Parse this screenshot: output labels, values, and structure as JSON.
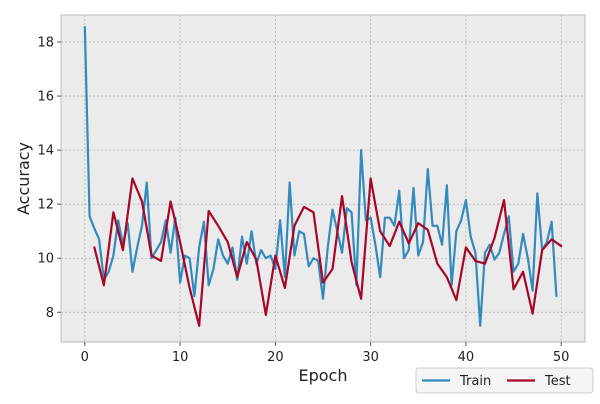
{
  "chart_data": {
    "type": "line",
    "title": "",
    "xlabel": "Epoch",
    "ylabel": "Accuracy",
    "xlim": [
      -2.5,
      52.5
    ],
    "ylim": [
      6.9,
      19.0
    ],
    "xticks": [
      0,
      10,
      20,
      30,
      40,
      50
    ],
    "yticks": [
      8,
      10,
      12,
      14,
      16,
      18
    ],
    "grid": true,
    "legend_position": "bottom-right, outside plot",
    "colors": {
      "background": "#ebebeb",
      "grid": "#b0b0b0",
      "frame": "#bcbcbc",
      "Train": "#348abd",
      "Test": "#a60628"
    },
    "series": [
      {
        "name": "Train",
        "x": [
          0,
          0.5,
          1,
          1.5,
          2,
          2.5,
          3,
          3.5,
          4,
          4.5,
          5,
          5.5,
          6,
          6.5,
          7,
          7.5,
          8,
          8.5,
          9,
          9.5,
          10,
          10.5,
          11,
          11.5,
          12,
          12.5,
          13,
          13.5,
          14,
          14.5,
          15,
          15.5,
          16,
          16.5,
          17,
          17.5,
          18,
          18.5,
          19,
          19.5,
          20,
          20.5,
          21,
          21.5,
          22,
          22.5,
          23,
          23.5,
          24,
          24.5,
          25,
          25.5,
          26,
          26.5,
          27,
          27.5,
          28,
          28.5,
          29,
          29.5,
          30,
          30.5,
          31,
          31.5,
          32,
          32.5,
          33,
          33.5,
          34,
          34.5,
          35,
          35.5,
          36,
          36.5,
          37,
          37.5,
          38,
          38.5,
          39,
          39.5,
          40,
          40.5,
          41,
          41.5,
          42,
          42.5,
          43,
          43.5,
          44,
          44.5,
          45,
          45.5,
          46,
          46.5,
          47,
          47.5,
          48,
          48.5,
          49,
          49.5
        ],
        "values": [
          18.55,
          11.55,
          11.1,
          10.7,
          9.2,
          9.5,
          10.1,
          11.4,
          10.5,
          11.3,
          9.5,
          10.4,
          11.2,
          12.8,
          10.0,
          10.3,
          10.6,
          11.4,
          10.2,
          11.5,
          9.1,
          10.1,
          10.0,
          8.6,
          10.4,
          11.35,
          9.0,
          9.6,
          10.7,
          10.1,
          9.8,
          10.4,
          9.2,
          10.8,
          9.8,
          11.0,
          9.8,
          10.3,
          10.0,
          10.1,
          9.6,
          11.4,
          9.3,
          12.8,
          10.1,
          11.0,
          10.9,
          9.7,
          10.0,
          9.9,
          8.5,
          10.4,
          11.8,
          11.0,
          10.2,
          11.85,
          11.7,
          9.0,
          14.0,
          11.4,
          11.5,
          10.5,
          9.3,
          11.5,
          11.5,
          11.2,
          12.5,
          10.0,
          10.3,
          12.6,
          10.1,
          10.6,
          13.3,
          11.2,
          11.2,
          10.5,
          12.7,
          9.0,
          11.0,
          11.4,
          12.15,
          10.8,
          10.2,
          7.5,
          10.2,
          10.5,
          9.95,
          10.2,
          10.9,
          11.55,
          9.5,
          9.8,
          10.9,
          10.0,
          8.8,
          12.4,
          10.3,
          10.6,
          11.35,
          8.6
        ]
      },
      {
        "name": "Test",
        "x": [
          1,
          2,
          3,
          4,
          5,
          6,
          7,
          8,
          9,
          10,
          11,
          12,
          13,
          14,
          15,
          16,
          17,
          18,
          19,
          20,
          21,
          22,
          23,
          24,
          25,
          26,
          27,
          28,
          29,
          30,
          31,
          32,
          33,
          34,
          35,
          36,
          37,
          38,
          39,
          40,
          41,
          42,
          43,
          44,
          45,
          46,
          47,
          48,
          49,
          50
        ],
        "values": [
          10.4,
          9.0,
          11.7,
          10.3,
          12.95,
          12.1,
          10.1,
          9.9,
          12.1,
          10.6,
          8.9,
          7.5,
          11.75,
          11.2,
          10.6,
          9.3,
          10.6,
          9.95,
          7.9,
          10.1,
          8.9,
          11.2,
          11.9,
          11.7,
          9.1,
          9.6,
          12.3,
          9.85,
          8.5,
          12.95,
          11.0,
          10.45,
          11.35,
          10.55,
          11.3,
          11.05,
          9.8,
          9.3,
          8.45,
          10.4,
          9.9,
          9.8,
          10.75,
          12.15,
          8.85,
          9.5,
          7.95,
          10.3,
          10.7,
          10.45
        ]
      }
    ]
  }
}
